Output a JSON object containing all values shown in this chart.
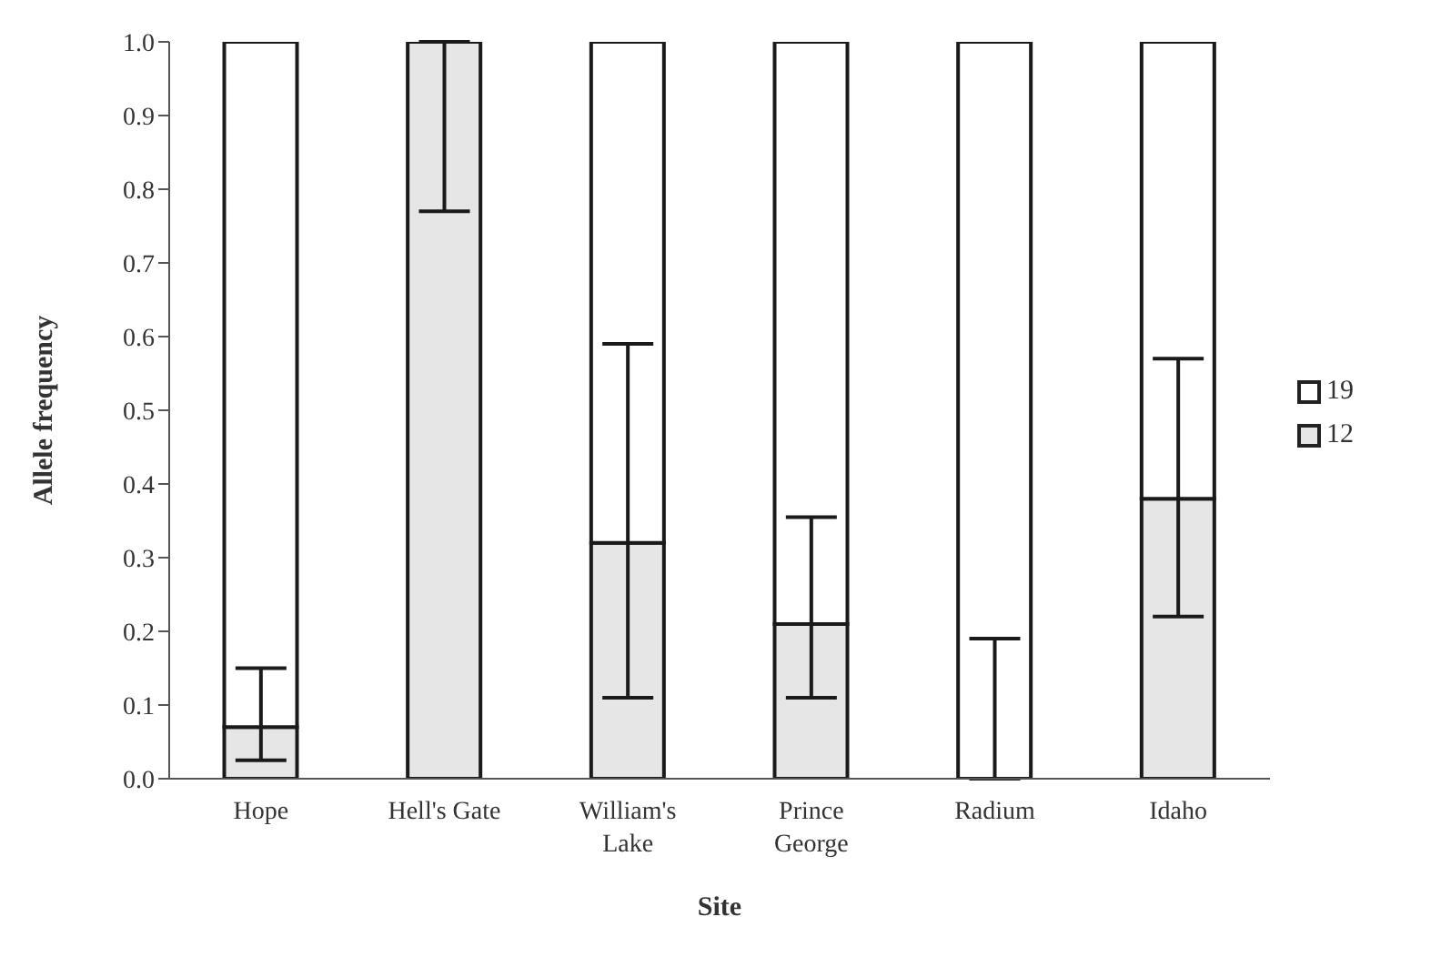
{
  "chart_data": {
    "type": "bar",
    "stacked": true,
    "xlabel": "Site",
    "ylabel": "Allele frequency",
    "categories": [
      "Hope",
      "Hell's Gate",
      "William's Lake",
      "Prince George",
      "Radium",
      "Idaho"
    ],
    "series": [
      {
        "name": "12",
        "color": "#e6e6e6",
        "values": [
          0.07,
          1.0,
          0.32,
          0.21,
          0,
          0.38
        ],
        "errors": [
          [
            0.025,
            0.15
          ],
          [
            0.77,
            1.0
          ],
          [
            0.11,
            0.59
          ],
          [
            0.11,
            0.355
          ],
          [
            0,
            0.19
          ],
          [
            0.22,
            0.57
          ]
        ]
      },
      {
        "name": "19",
        "color": "#ffffff",
        "values": [
          0.93,
          0,
          0.68,
          0.79,
          1.0,
          0.62
        ]
      }
    ],
    "ylim": [
      0,
      1
    ],
    "yticks": [
      {
        "value": 0,
        "label": "0.0"
      },
      {
        "value": 0.1,
        "label": "0.1"
      },
      {
        "value": 0.2,
        "label": "0.2"
      },
      {
        "value": 0.3,
        "label": "0.3"
      },
      {
        "value": 0.4,
        "label": "0.4"
      },
      {
        "value": 0.5,
        "label": "0.5"
      },
      {
        "value": 0.6,
        "label": "0.6"
      },
      {
        "value": 0.7,
        "label": "0.7"
      },
      {
        "value": 0.8,
        "label": "0.8"
      },
      {
        "value": 0.9,
        "label": "0.9"
      },
      {
        "value": 1,
        "label": "1.0"
      }
    ],
    "grid": false,
    "legend": "right"
  }
}
